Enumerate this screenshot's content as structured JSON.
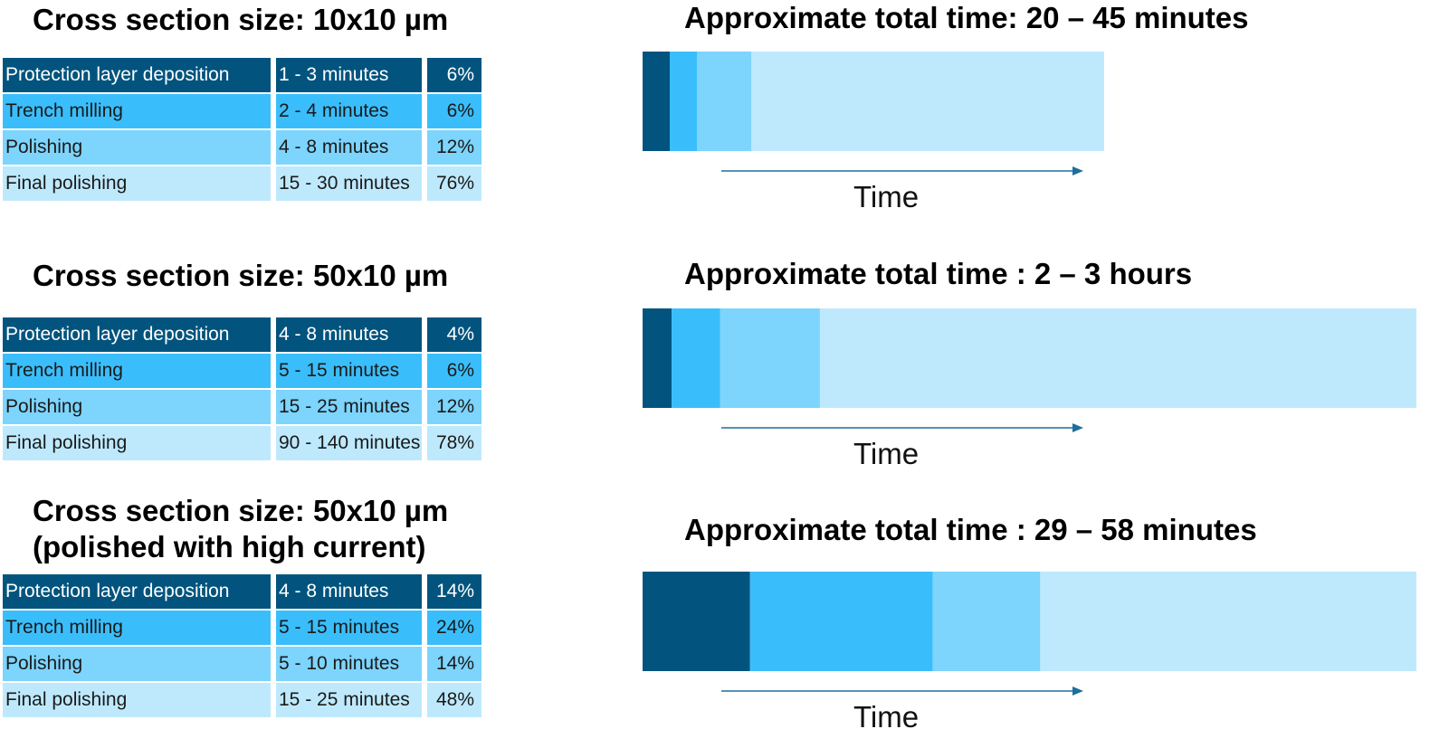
{
  "chart_data": [
    {
      "type": "stacked-bar",
      "title": "Cross section size: 10x10 µm",
      "total_label": "Approximate total time: 20 – 45 minutes",
      "axis_label": "Time",
      "bar_scale_minutes": 57,
      "steps": [
        {
          "name": "Protection layer deposition",
          "duration": "1 - 3 minutes",
          "percent_label": "6%",
          "minutes": 2
        },
        {
          "name": "Trench milling",
          "duration": "2 - 4 minutes",
          "percent_label": "6%",
          "minutes": 2
        },
        {
          "name": "Polishing",
          "duration": "4 - 8 minutes",
          "percent_label": "12%",
          "minutes": 4
        },
        {
          "name": "Final polishing",
          "duration": "15 - 30 minutes",
          "percent_label": "76%",
          "minutes": 26
        }
      ]
    },
    {
      "type": "stacked-bar",
      "title": "Cross section size: 50x10 µm",
      "total_label": "Approximate total time : 2 – 3 hours",
      "axis_label": "Time",
      "bar_scale_minutes": 240,
      "steps": [
        {
          "name": "Protection layer deposition",
          "duration": "4 - 8 minutes",
          "percent_label": "4%",
          "minutes": 9
        },
        {
          "name": "Trench milling",
          "duration": "5 - 15 minutes",
          "percent_label": "6%",
          "minutes": 15
        },
        {
          "name": "Polishing",
          "duration": "15 - 25 minutes",
          "percent_label": "12%",
          "minutes": 31
        },
        {
          "name": "Final polishing",
          "duration": "90 - 140 minutes",
          "percent_label": "78%",
          "minutes": 185
        }
      ]
    },
    {
      "type": "stacked-bar",
      "title": [
        "Cross section size: 50x10 µm",
        "(polished with high current)"
      ],
      "total_label": "Approximate total time : 29 – 58 minutes",
      "axis_label": "Time",
      "bar_scale_minutes": 72,
      "steps": [
        {
          "name": "Protection layer deposition",
          "duration": "4 - 8 minutes",
          "percent_label": "14%",
          "minutes": 10
        },
        {
          "name": "Trench milling",
          "duration": "5 - 15 minutes",
          "percent_label": "24%",
          "minutes": 17
        },
        {
          "name": "Polishing",
          "duration": "5 - 10 minutes",
          "percent_label": "14%",
          "minutes": 10
        },
        {
          "name": "Final polishing",
          "duration": "15 - 25  minutes",
          "percent_label": "48%",
          "minutes": 35
        }
      ]
    }
  ],
  "colors": {
    "step_colors": [
      "#02547E",
      "#3ABEFB",
      "#7DD4FC",
      "#BEE9FC"
    ],
    "arrow": "#1F6E9E"
  }
}
